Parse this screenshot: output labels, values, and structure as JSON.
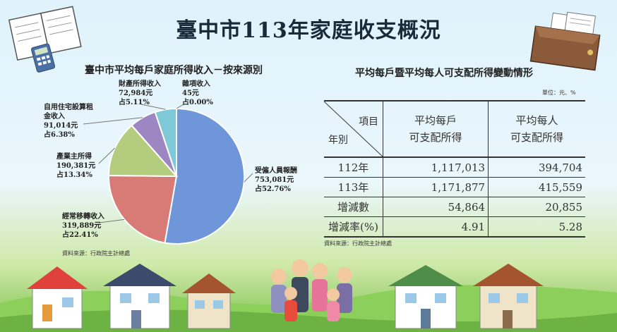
{
  "title": "臺中市113年家庭收支概況",
  "pie": {
    "title": "臺中市平均每戶家庭所得收入－按來源別",
    "source": "資料來源：行政院主計總處"
  },
  "chart_data": [
    {
      "type": "pie",
      "title": "臺中市平均每戶家庭所得收入－按來源別",
      "slices": [
        {
          "name": "受僱人員報酬",
          "amount": "753,081元",
          "share": "占52.76%",
          "value": 52.76,
          "color": "#6f96d8"
        },
        {
          "name": "經常移轉收入",
          "amount": "319,889元",
          "share": "占22.41%",
          "value": 22.41,
          "color": "#d87a76"
        },
        {
          "name": "產業主所得",
          "amount": "190,381元",
          "share": "占13.34%",
          "value": 13.34,
          "color": "#b3cc7e"
        },
        {
          "name": "自用住宅設算租金收入",
          "amount": "91,014元",
          "share": "占6.38%",
          "value": 6.38,
          "color": "#9c87c2"
        },
        {
          "name": "財產所得收入",
          "amount": "72,984元",
          "share": "占5.11%",
          "value": 5.11,
          "color": "#7ec8d8"
        },
        {
          "name": "雜項收入",
          "amount": "45元",
          "share": "占0.00%",
          "value": 0.0,
          "color": "#e8a05c"
        }
      ]
    },
    {
      "type": "table",
      "title": "平均每戶暨平均每人可支配所得變動情形",
      "unit": "單位：元、%",
      "header_item": "項目",
      "header_year": "年別",
      "columns": [
        "平均每戶可支配所得",
        "平均每人可支配所得"
      ],
      "col1_lines": [
        "平均每戶",
        "可支配所得"
      ],
      "col2_lines": [
        "平均每人",
        "可支配所得"
      ],
      "rows": [
        {
          "label": "112年",
          "household": "1,117,013",
          "person": "394,704"
        },
        {
          "label": "113年",
          "household": "1,171,877",
          "person": "415,559"
        },
        {
          "label": "增減數",
          "household": "54,864",
          "person": "20,855"
        },
        {
          "label": "增減率(%)",
          "household": "4.91",
          "person": "5.28"
        }
      ],
      "source": "資料來源：行政院主計總處"
    }
  ],
  "labels": {
    "s0": {
      "l1": "受僱人員報酬",
      "l2": "753,081元",
      "l3": "占52.76%"
    },
    "s1": {
      "l1": "經常移轉收入",
      "l2": "319,889元",
      "l3": "占22.41%"
    },
    "s2": {
      "l1": "產業主所得",
      "l2": "190,381元",
      "l3": "占13.34%"
    },
    "s3": {
      "l1": "自用住宅設算租",
      "l2": "金收入",
      "l3": "91,014元",
      "l4": "占6.38%"
    },
    "s4": {
      "l1": "財產所得收入",
      "l2": "72,984元",
      "l3": "占5.11%"
    },
    "s5": {
      "l1": "雜項收入",
      "l2": "45元",
      "l3": "占0.00%"
    }
  },
  "table": {
    "title": "平均每戶暨平均每人可支配所得變動情形",
    "unit": "單位：元、%",
    "source": "資料來源：行政院主計總處"
  },
  "icons": [
    "notebook-icon",
    "calculator-icon",
    "wallet-icon",
    "receipts-icon",
    "house-icon",
    "family-icon"
  ]
}
